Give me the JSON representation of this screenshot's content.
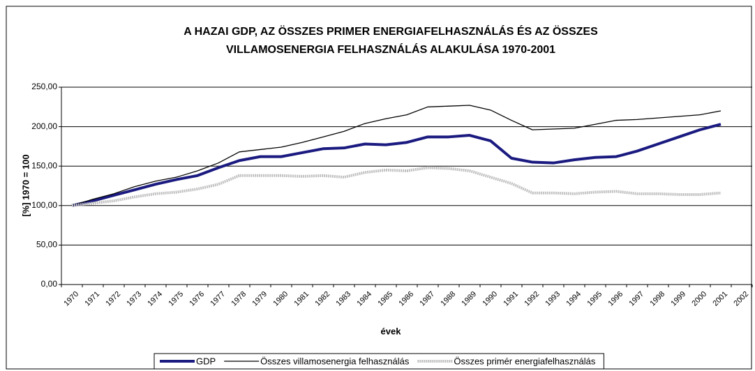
{
  "chart_data": {
    "type": "line",
    "title_lines": [
      "A HAZAI GDP, AZ ÖSSZES PRIMER ENERGIAFELHASZNÁLÁS ÉS AZ ÖSSZES",
      "VILLAMOSENERGIA FELHASZNÁLÁS ALAKULÁSA 1970-2001"
    ],
    "x_label": "évek",
    "y_label": "[%] 1970 = 100",
    "categories": [
      "1970",
      "1971",
      "1972",
      "1973",
      "1974",
      "1975",
      "1976",
      "1977",
      "1978",
      "1979",
      "1980",
      "1981",
      "1982",
      "1983",
      "1984",
      "1985",
      "1986",
      "1987",
      "1988",
      "1989",
      "1990",
      "1991",
      "1992",
      "1993",
      "1994",
      "1995",
      "1996",
      "1997",
      "1998",
      "1999",
      "2000",
      "2001",
      "2002"
    ],
    "series": [
      {
        "name": "GDP",
        "color": "#1a1a80",
        "values": [
          100,
          106,
          113,
          120,
          127,
          133,
          138,
          148,
          157,
          162,
          162,
          167,
          172,
          173,
          178,
          177,
          180,
          187,
          187,
          189,
          182,
          160,
          155,
          154,
          158,
          161,
          162,
          169,
          178,
          187,
          196,
          203,
          null
        ]
      },
      {
        "name": "Összes villamosenergia felhasználás",
        "color": "#000000",
        "values": [
          100,
          108,
          115,
          124,
          131,
          136,
          144,
          154,
          168,
          171,
          174,
          180,
          187,
          194,
          204,
          210,
          215,
          225,
          226,
          227,
          221,
          208,
          196,
          197,
          198,
          203,
          208,
          209,
          211,
          213,
          215,
          220,
          null
        ]
      },
      {
        "name": "Összes primér energiafelhasználás",
        "color": "#c0c0c0",
        "values": [
          100,
          103,
          106,
          111,
          115,
          117,
          121,
          127,
          138,
          138,
          138,
          137,
          138,
          136,
          142,
          145,
          144,
          148,
          147,
          144,
          136,
          128,
          116,
          116,
          115,
          117,
          118,
          115,
          115,
          114,
          114,
          116,
          null
        ]
      }
    ],
    "ylim": [
      0,
      250
    ],
    "yticks": [
      {
        "value": 0,
        "label": "0,00"
      },
      {
        "value": 50,
        "label": "50,00"
      },
      {
        "value": 100,
        "label": "100,00"
      },
      {
        "value": 150,
        "label": "150,00"
      },
      {
        "value": 200,
        "label": "200,00"
      },
      {
        "value": 250,
        "label": "250,00"
      }
    ],
    "grid": true,
    "legend": "bottom"
  }
}
